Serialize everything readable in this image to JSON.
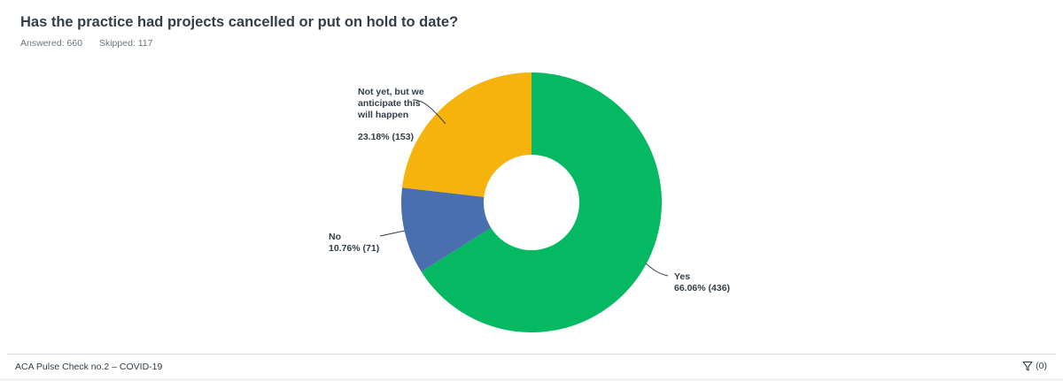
{
  "header": {
    "title": "Has the practice had projects cancelled or put on hold to date?",
    "answered_label": "Answered: 660",
    "skipped_label": "Skipped: 117"
  },
  "footer": {
    "survey_name": "ACA Pulse Check no.2 – COVID-19",
    "filter_icon": "filter-icon",
    "filter_count": "(0)"
  },
  "chart_data": {
    "type": "pie",
    "subtype": "donut",
    "title": "Has the practice had projects cancelled or put on hold to date?",
    "answered": 660,
    "skipped": 117,
    "categories": [
      "Yes",
      "No",
      "Not yet, but we anticipate this will happen"
    ],
    "values": [
      66.06,
      10.76,
      23.18
    ],
    "counts": [
      436,
      71,
      153
    ],
    "colors": [
      "#05b862",
      "#4a6fae",
      "#f6b30c"
    ],
    "labels": {
      "yes": {
        "name": "Yes",
        "value": "66.06% (436)"
      },
      "no": {
        "name": "No",
        "value": "10.76% (71)"
      },
      "notyet": {
        "line1": "Not yet, but we",
        "line2": "anticipate this",
        "line3": "will happen",
        "value": "23.18% (153)"
      }
    }
  }
}
